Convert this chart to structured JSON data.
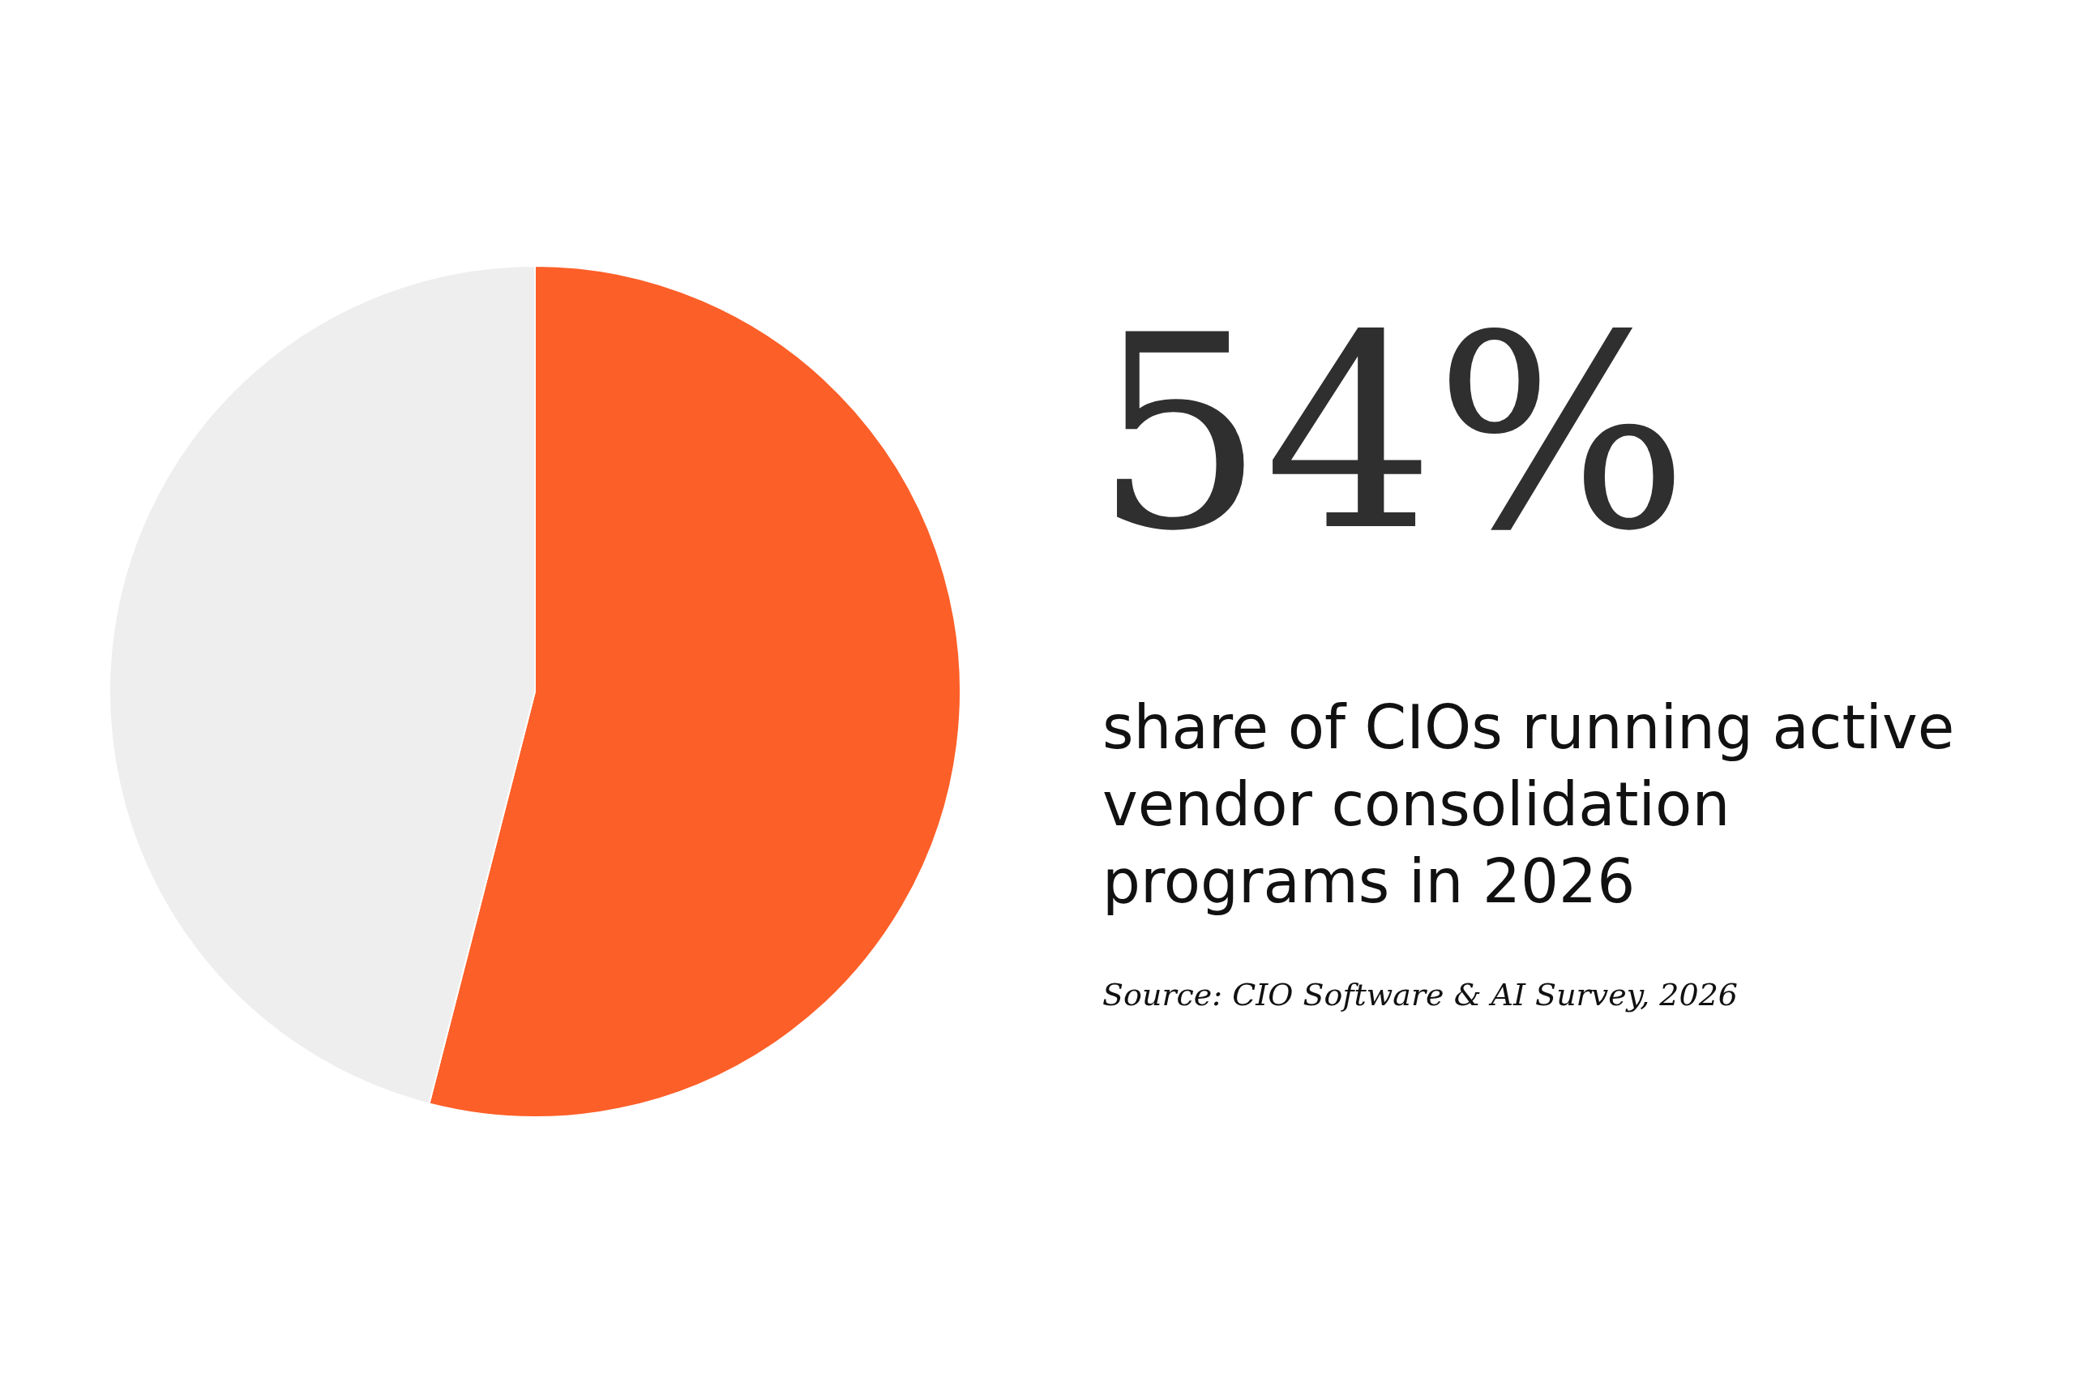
{
  "chart_data": {
    "type": "pie",
    "title": "54%",
    "subtitle": "share of CIOs running active vendor consolidation programs in 2026",
    "categories": [
      null,
      null
    ],
    "values": [
      54,
      46
    ],
    "colors": [
      "#fd5f28",
      "#eeeeee"
    ],
    "annotations": [
      "Source: CIO Software & AI Survey, 2026"
    ]
  }
}
